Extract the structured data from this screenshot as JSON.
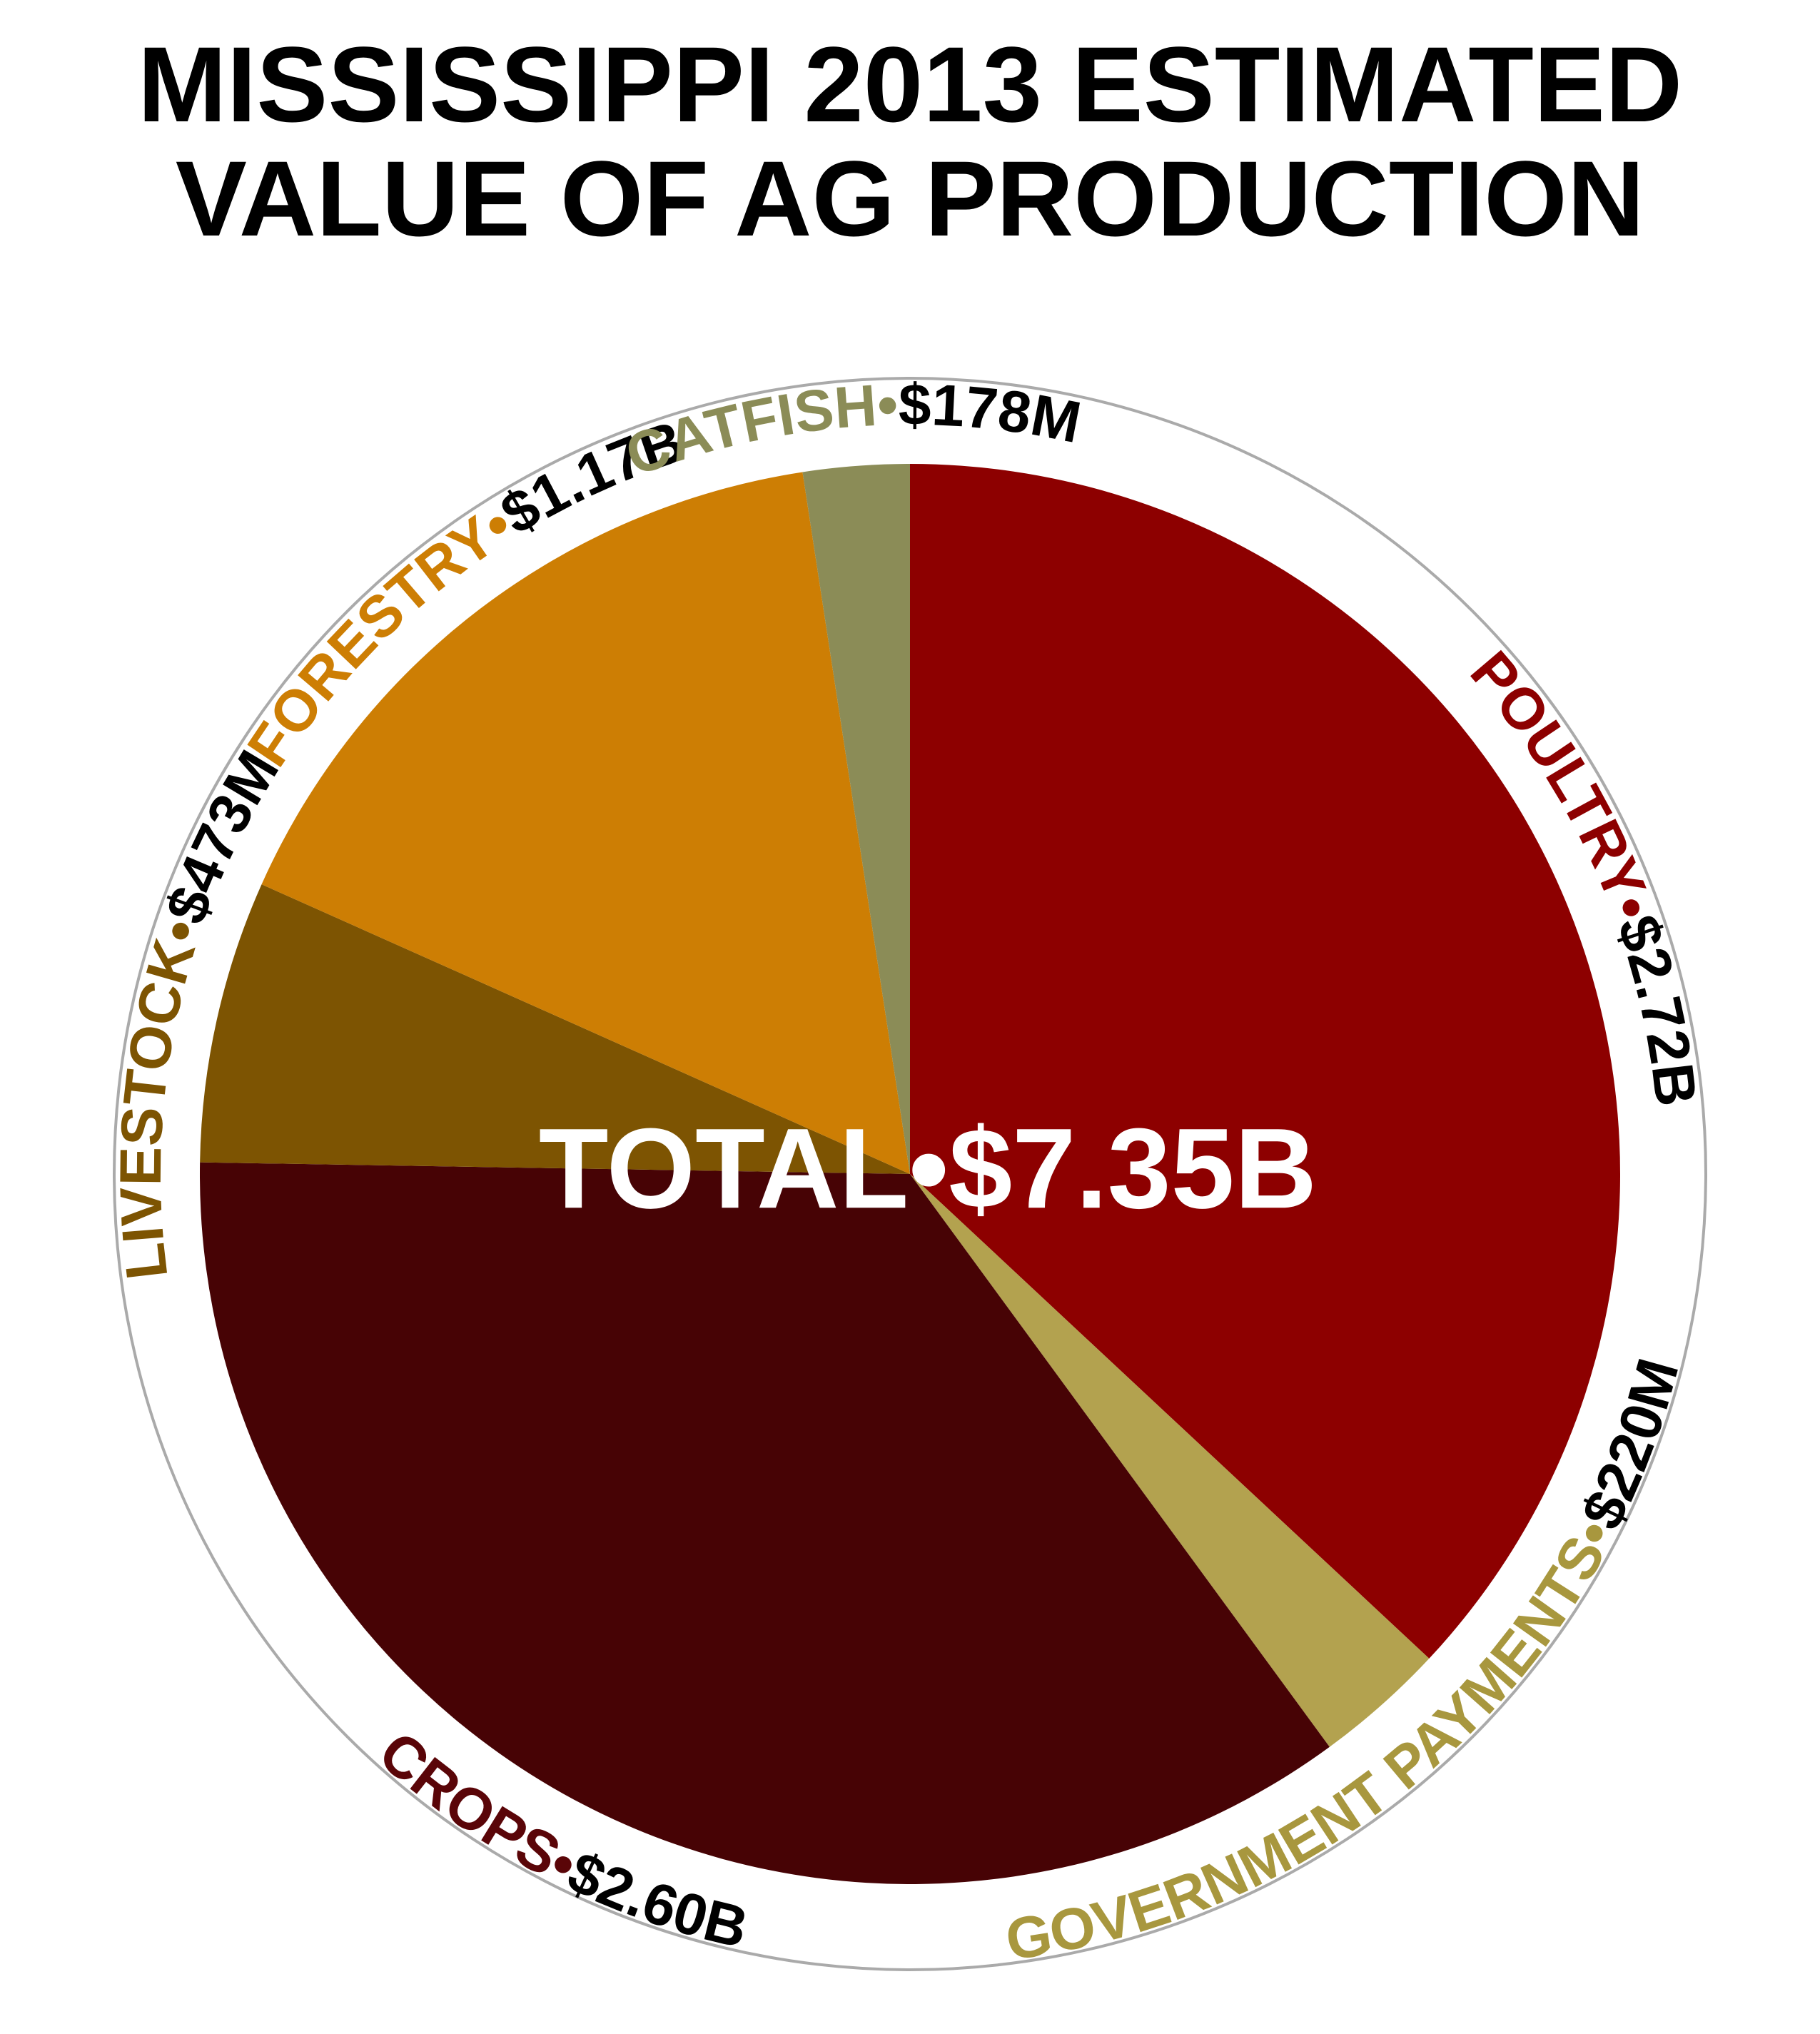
{
  "chart_data": {
    "type": "pie",
    "title_lines": [
      "MISSISSIPPI 2013 ESTIMATED",
      "VALUE OF AG PRODUCTION"
    ],
    "center_label": "TOTAL•$7.35B",
    "slices": [
      {
        "label": "POULTRY",
        "value_label": "$2.72B",
        "value": 2.72,
        "color": "#8d0000",
        "label_color": "#8d0000"
      },
      {
        "label": "GOVERNMENT PAYMENTS",
        "value_label": "$220M",
        "value": 0.22,
        "color": "#b3a24f",
        "label_color": "#a8973e"
      },
      {
        "label": "CROPS",
        "value_label": "$2.60B",
        "value": 2.6,
        "color": "#470305",
        "label_color": "#5a0508"
      },
      {
        "label": "LIVESTOCK",
        "value_label": "$473M",
        "value": 0.473,
        "color": "#7d5402",
        "label_color": "#7d5402"
      },
      {
        "label": "FORESTRY",
        "value_label": "$1.17B",
        "value": 1.17,
        "color": "#cd7e04",
        "label_color": "#cd7e04"
      },
      {
        "label": "CATFISH",
        "value_label": "$178M",
        "value": 0.178,
        "color": "#8b8c57",
        "label_color": "#8b8c57"
      }
    ],
    "value_label_color": "#000000",
    "separator": "•",
    "start": "12 o'clock",
    "direction": "clockwise",
    "outer_ring_color": "#aaaaaa"
  }
}
